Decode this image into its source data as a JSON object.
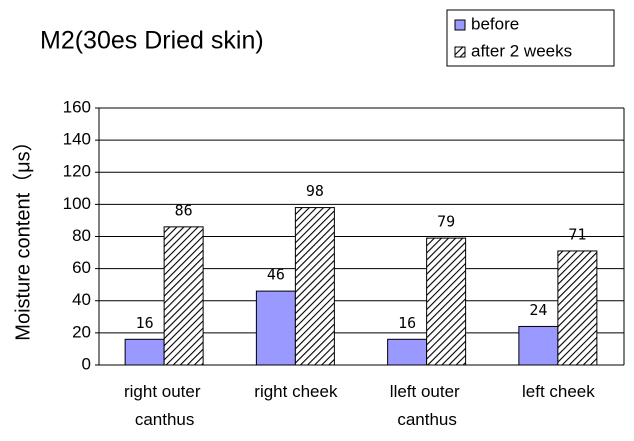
{
  "chart_data": {
    "type": "bar",
    "title": "M2(30es Dried skin)",
    "y_label": "Moisture content（μs）",
    "categories": [
      "right outer canthus",
      "right cheek",
      "lleft outer canthus",
      "left cheek"
    ],
    "series": [
      {
        "name": "before",
        "color": "#9999ff",
        "pattern": "solid",
        "values": [
          16,
          46,
          16,
          24
        ]
      },
      {
        "name": "after 2 weeks",
        "color": "#000000",
        "pattern": "hatch",
        "values": [
          86,
          98,
          79,
          71
        ]
      }
    ],
    "ylim": [
      0,
      160
    ],
    "yticks": [
      0,
      20,
      40,
      60,
      80,
      100,
      120,
      140,
      160
    ],
    "grid": true,
    "legend": "top-right"
  }
}
